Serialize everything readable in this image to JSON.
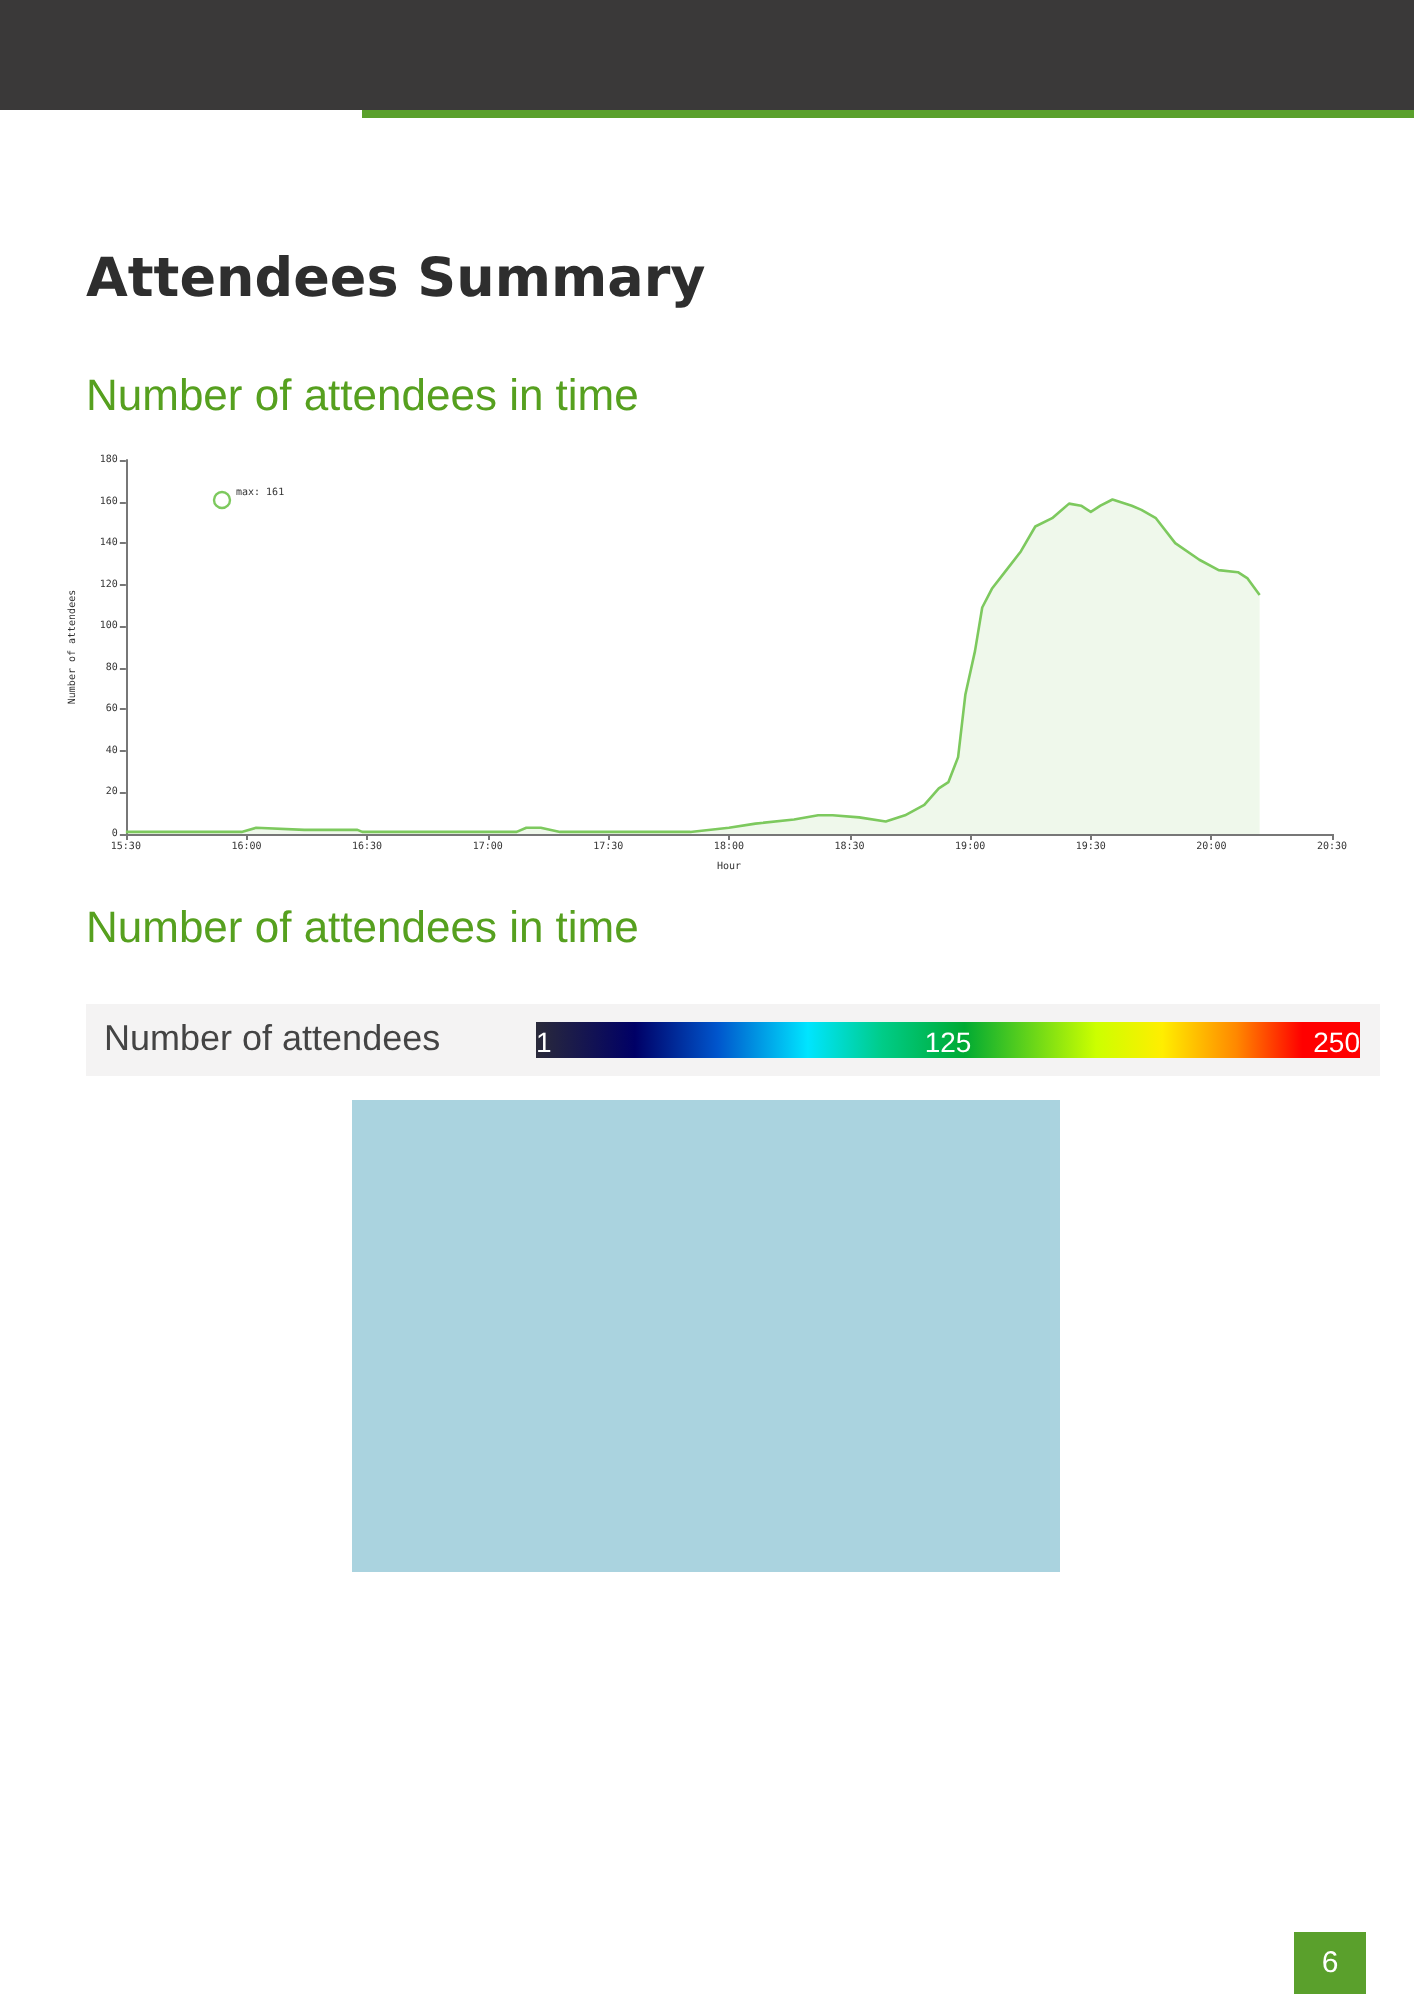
{
  "chart_data": [
    {
      "type": "area",
      "title": "Attendees Summary",
      "subtitle": "Number of attendees in time",
      "xlabel": "Hour",
      "ylabel": "Number of attendees",
      "annotations": [
        "max: 161"
      ],
      "x": [
        15.5,
        15.98,
        16.04,
        16.24,
        16.46,
        16.48,
        17.12,
        17.16,
        17.22,
        17.3,
        17.44,
        17.84,
        18.0,
        18.11,
        18.27,
        18.37,
        18.43,
        18.54,
        18.65,
        18.73,
        18.81,
        18.87,
        18.91,
        18.95,
        18.98,
        19.02,
        19.05,
        19.09,
        19.15,
        19.21,
        19.27,
        19.34,
        19.41,
        19.46,
        19.5,
        19.54,
        19.59,
        19.67,
        19.71,
        19.77,
        19.85,
        19.95,
        20.03,
        20.11,
        20.15,
        20.2
      ],
      "series": [
        {
          "color": "#7dc95e",
          "values": [
            1,
            1,
            3,
            2,
            2,
            1,
            1,
            3,
            3,
            1,
            1,
            1,
            3,
            5,
            7,
            9,
            9,
            8,
            6,
            9,
            14,
            22,
            25,
            37,
            67,
            88,
            109,
            118,
            127,
            136,
            148,
            152,
            159,
            158,
            155,
            158,
            161,
            158,
            156,
            152,
            140,
            132,
            127,
            126,
            123,
            115
          ]
        }
      ],
      "xlim": [
        15.5,
        20.5
      ],
      "xticks": [
        {
          "value": 15.5,
          "label": "15:30"
        },
        {
          "value": 16,
          "label": "16:00"
        },
        {
          "value": 16.5,
          "label": "16:30"
        },
        {
          "value": 17,
          "label": "17:00"
        },
        {
          "value": 17.5,
          "label": "17:30"
        },
        {
          "value": 18,
          "label": "18:00"
        },
        {
          "value": 18.5,
          "label": "18:30"
        },
        {
          "value": 19,
          "label": "19:00"
        },
        {
          "value": 19.5,
          "label": "19:30"
        },
        {
          "value": 20,
          "label": "20:00"
        },
        {
          "value": 20.5,
          "label": "20:30"
        }
      ],
      "ylim": [
        0,
        180
      ],
      "yticks": [
        0,
        20,
        40,
        60,
        80,
        100,
        120,
        140,
        160,
        180
      ],
      "marker": "none"
    },
    {
      "type": "other",
      "title": "Number of attendees in time",
      "clabel": "Number of attendees",
      "annotations": [
        "1",
        "125",
        "250",
        "6"
      ]
    }
  ]
}
